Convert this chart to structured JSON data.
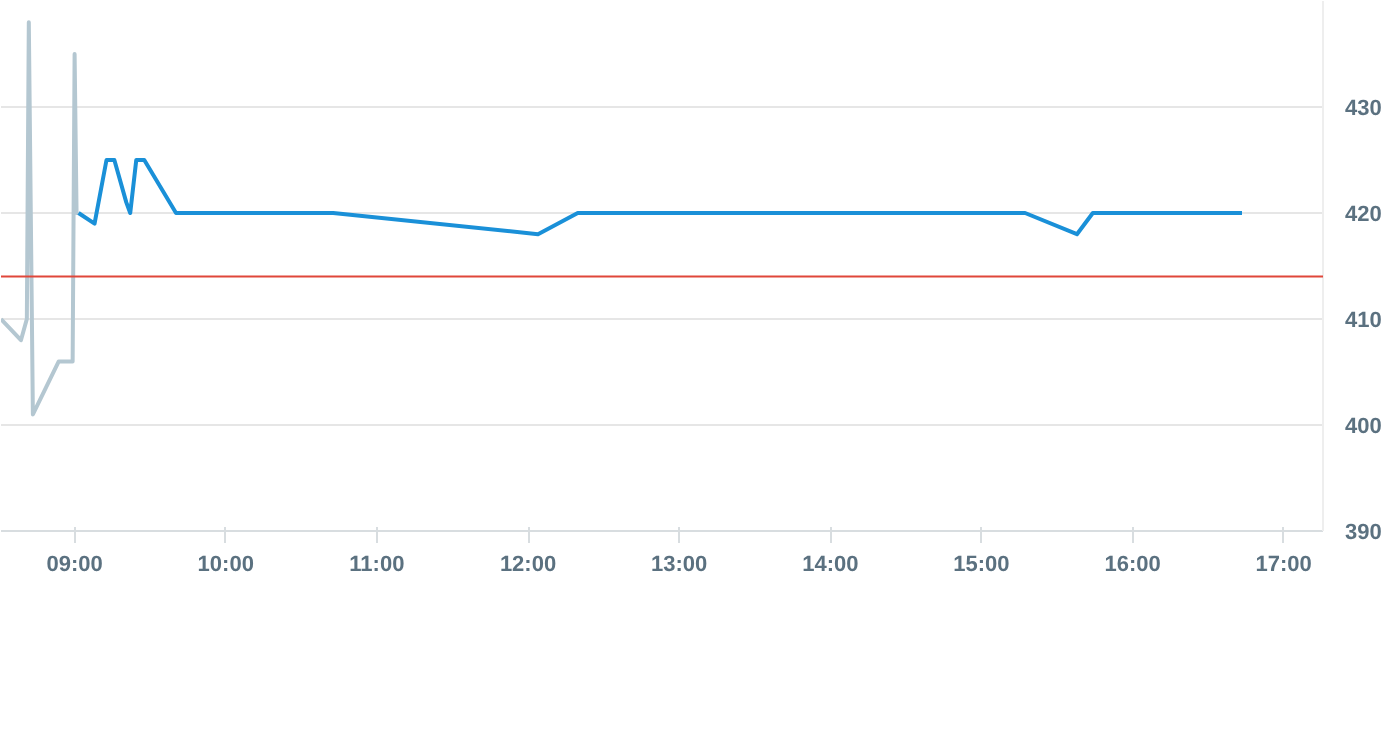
{
  "chart_data": {
    "type": "line",
    "xlim": [
      8.513,
      17.26
    ],
    "ylim": [
      390,
      440
    ],
    "xticks": [
      {
        "value": 9,
        "label": "09:00"
      },
      {
        "value": 10,
        "label": "10:00"
      },
      {
        "value": 11,
        "label": "11:00"
      },
      {
        "value": 12,
        "label": "12:00"
      },
      {
        "value": 13,
        "label": "13:00"
      },
      {
        "value": 14,
        "label": "14:00"
      },
      {
        "value": 15,
        "label": "15:00"
      },
      {
        "value": 16,
        "label": "16:00"
      },
      {
        "value": 17,
        "label": "17:00"
      }
    ],
    "yticks": [
      390,
      400,
      410,
      420,
      430
    ],
    "grid": "y",
    "marker": "none",
    "line_style": "solid",
    "series": [
      {
        "color": "#b4c7d1",
        "x": [
          8.513,
          8.645,
          8.684,
          8.697,
          8.724,
          8.895,
          8.987,
          9.0,
          9.013,
          9.026
        ],
        "values": [
          410,
          408,
          410,
          438,
          401,
          406,
          406,
          435,
          420,
          420
        ]
      },
      {
        "color": "#1a90d8",
        "x": [
          9.026,
          9.132,
          9.211,
          9.263,
          9.342,
          9.368,
          9.408,
          9.461,
          9.671,
          10.711,
          12.066,
          12.329,
          15.289,
          15.632,
          15.737,
          16.724
        ],
        "values": [
          420,
          419,
          425,
          425,
          421,
          420,
          425,
          425,
          420,
          420,
          418,
          420,
          420,
          418,
          420,
          420
        ]
      }
    ],
    "ref_lines": [
      {
        "axis": "y",
        "value": 414,
        "color": "#e0473a",
        "line_style": "solid"
      }
    ]
  }
}
